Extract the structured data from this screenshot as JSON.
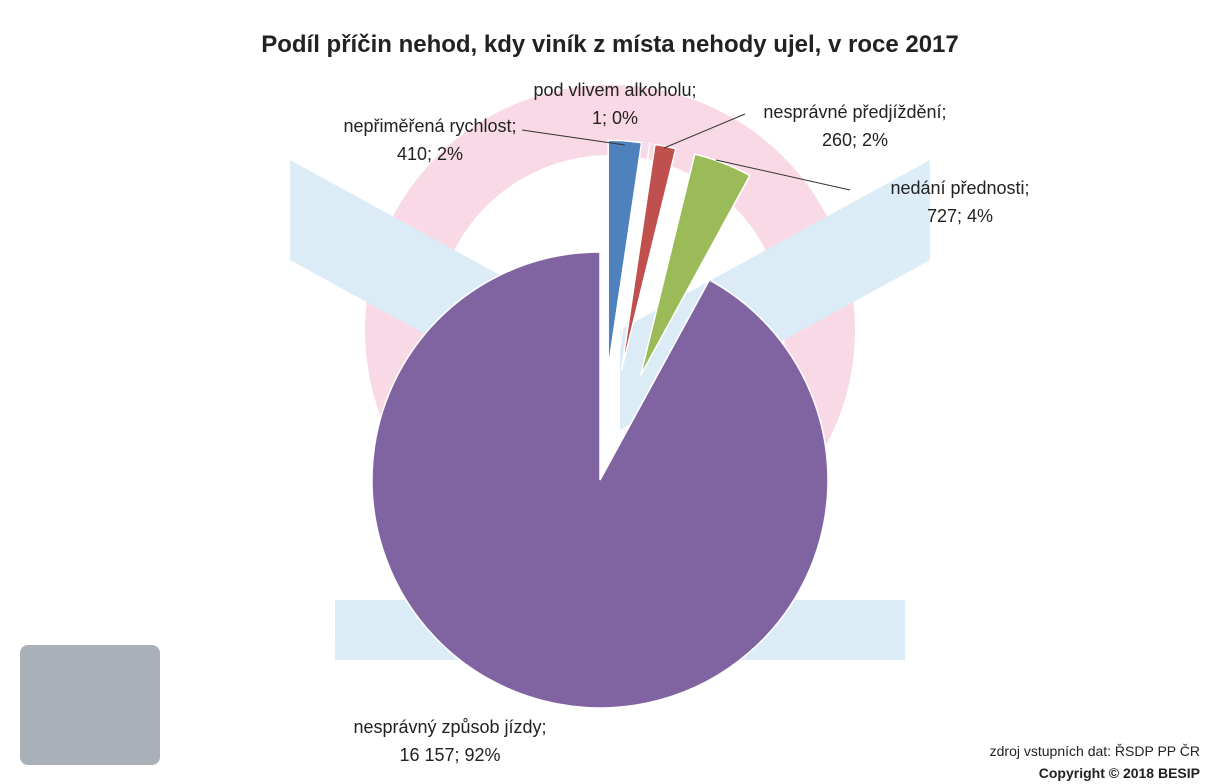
{
  "chart_data": {
    "type": "pie",
    "title": "Podíl příčin nehod, kdy viník z místa nehody ujel, v roce 2017",
    "categories": [
      "nepřiměřená rychlost",
      "pod vlivem alkoholu",
      "nesprávné předjíždění",
      "nedání přednosti",
      "nesprávný způsob jízdy"
    ],
    "values": [
      410,
      1,
      260,
      727,
      16157
    ],
    "value_labels": [
      "410",
      "1",
      "260",
      "727",
      "16 157"
    ],
    "percents": [
      2,
      0,
      2,
      4,
      92
    ],
    "percent_labels": [
      "2%",
      "0%",
      "2%",
      "4%",
      "92%"
    ],
    "label_separator": ";",
    "colors": [
      "#4f81bd",
      "#4bacc6",
      "#c0504d",
      "#9bbb59",
      "#8064a2"
    ],
    "source": "zdroj vstupních dat: ŘSDP PP ČR",
    "copyright": "Copyright © 2018 BESIP"
  }
}
